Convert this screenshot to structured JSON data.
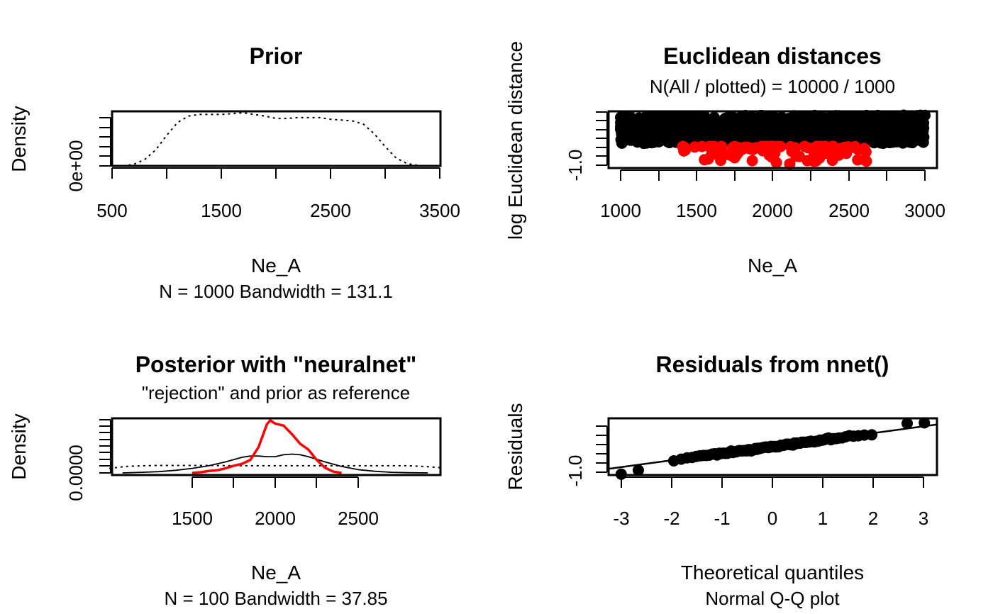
{
  "chart_data": [
    {
      "type": "line",
      "title": "Prior",
      "xlabel": "Ne_A",
      "ylabel": "Density",
      "sub": "N = 1000   Bandwidth = 131.1",
      "xticks": [
        "500",
        "1500",
        "2500",
        "3500"
      ],
      "ytick_labels": [
        "0e+00"
      ],
      "xlim": [
        500,
        3500
      ],
      "ylim": [
        0,
        0.000335
      ],
      "series": [
        {
          "style": "dotted",
          "color": "#000000",
          "x": [
            600,
            700,
            800,
            900,
            1000,
            1100,
            1200,
            1300,
            1400,
            1500,
            1600,
            1700,
            1800,
            1900,
            2000,
            2100,
            2200,
            2300,
            2400,
            2500,
            2600,
            2700,
            2800,
            2900,
            3000,
            3100,
            3200,
            3300,
            3400
          ],
          "y": [
            0.0,
            1e-05,
            4e-05,
            0.0001,
            0.00019,
            0.00027,
            0.00031,
            0.00032,
            0.00032,
            0.00032,
            0.000325,
            0.00033,
            0.00032,
            0.00031,
            0.000295,
            0.000295,
            0.0003,
            0.0003,
            0.0003,
            0.00029,
            0.000285,
            0.00028,
            0.00026,
            0.0002,
            0.00012,
            5e-05,
            1.5e-05,
            3e-06,
            0.0
          ]
        }
      ]
    },
    {
      "type": "scatter",
      "title": "Euclidean distances",
      "subtitle": "N(All / plotted) =  10000 / 1000",
      "xlabel": "Ne_A",
      "ylabel": "log Euclidean distance",
      "xticks": [
        "1000",
        "1500",
        "2000",
        "2500",
        "3000"
      ],
      "ytick_labels": [
        "-1.0"
      ],
      "xlim": [
        1000,
        3000
      ],
      "ylim": [
        -1.0,
        0.7
      ],
      "series": [
        {
          "name": "",
          "color": "#000000",
          "x_range": [
            1000,
            3000
          ],
          "y_range": [
            -0.3,
            0.6
          ],
          "count": 900
        },
        {
          "name": "",
          "color": "#ff0000",
          "x_range": [
            1400,
            2630
          ],
          "y_range": [
            -1.0,
            -0.4
          ],
          "count": 100
        }
      ]
    },
    {
      "type": "line",
      "title": "Posterior with \"neuralnet\"",
      "subtitle": "\"rejection\" and prior as reference",
      "xlabel": "Ne_A",
      "ylabel": "Density",
      "sub": "N = 100   Bandwidth = 37.85",
      "xticks": [
        "1500",
        "2000",
        "2500"
      ],
      "ytick_labels": [
        "0.0000"
      ],
      "xlim": [
        1000,
        3000
      ],
      "ylim": [
        0,
        0.0082
      ],
      "series": [
        {
          "style": "solid-red",
          "color": "#ff0000",
          "x": [
            1500,
            1550,
            1600,
            1650,
            1700,
            1750,
            1800,
            1850,
            1900,
            1950,
            1970,
            2000,
            2050,
            2100,
            2150,
            2200,
            2250,
            2300,
            2350,
            2400
          ],
          "y": [
            0.0,
            0.0001,
            0.0003,
            0.0004,
            0.0007,
            0.0011,
            0.0014,
            0.002,
            0.004,
            0.0075,
            0.0081,
            0.0076,
            0.0073,
            0.006,
            0.0045,
            0.0036,
            0.002,
            0.0008,
            0.0002,
            0.0
          ]
        },
        {
          "style": "solid-black",
          "color": "#000000",
          "x": [
            1080,
            1200,
            1300,
            1400,
            1500,
            1600,
            1700,
            1800,
            1850,
            1900,
            1950,
            2000,
            2050,
            2100,
            2150,
            2200,
            2300,
            2400,
            2500,
            2600,
            2700,
            2800,
            2920
          ],
          "y": [
            0.0,
            0.0001,
            0.0002,
            0.0004,
            0.0007,
            0.0011,
            0.0017,
            0.0024,
            0.0026,
            0.0026,
            0.0025,
            0.0025,
            0.0028,
            0.0029,
            0.0028,
            0.0025,
            0.0017,
            0.001,
            0.0005,
            0.00025,
            0.0001,
            3e-05,
            0.0
          ]
        },
        {
          "style": "dotted",
          "color": "#000000",
          "x": [
            1000,
            1100,
            1200,
            1300,
            1400,
            1600,
            1800,
            2000,
            2200,
            2400,
            2600,
            2800,
            2900,
            3000
          ],
          "y": [
            0.0007,
            0.001,
            0.0011,
            0.00115,
            0.00115,
            0.00115,
            0.0011,
            0.0011,
            0.0011,
            0.0011,
            0.0011,
            0.0011,
            0.001,
            0.0008
          ]
        }
      ]
    },
    {
      "type": "scatter",
      "title": "Residuals from nnet()",
      "xlabel": "Theoretical quantiles",
      "ylabel": "Residuals",
      "sub": "Normal Q-Q plot",
      "xticks": [
        "-3",
        "-2",
        "-1",
        "0",
        "1",
        "2",
        "3"
      ],
      "ytick_labels": [
        "-1.0"
      ],
      "xlim": [
        -3.25,
        3.25
      ],
      "ylim": [
        -1.1,
        0.9
      ],
      "reference_line": {
        "x": [
          -3.25,
          3.25
        ],
        "y": [
          -0.88,
          0.68
        ]
      },
      "series": [
        {
          "name": "",
          "color": "#000000",
          "count": 100,
          "slope": 0.24,
          "intercept": -0.1,
          "extremes": [
            [
              -3.0,
              -1.07
            ],
            [
              -2.66,
              -0.93
            ],
            [
              2.66,
              0.72
            ],
            [
              3.0,
              0.74
            ]
          ]
        }
      ]
    }
  ]
}
